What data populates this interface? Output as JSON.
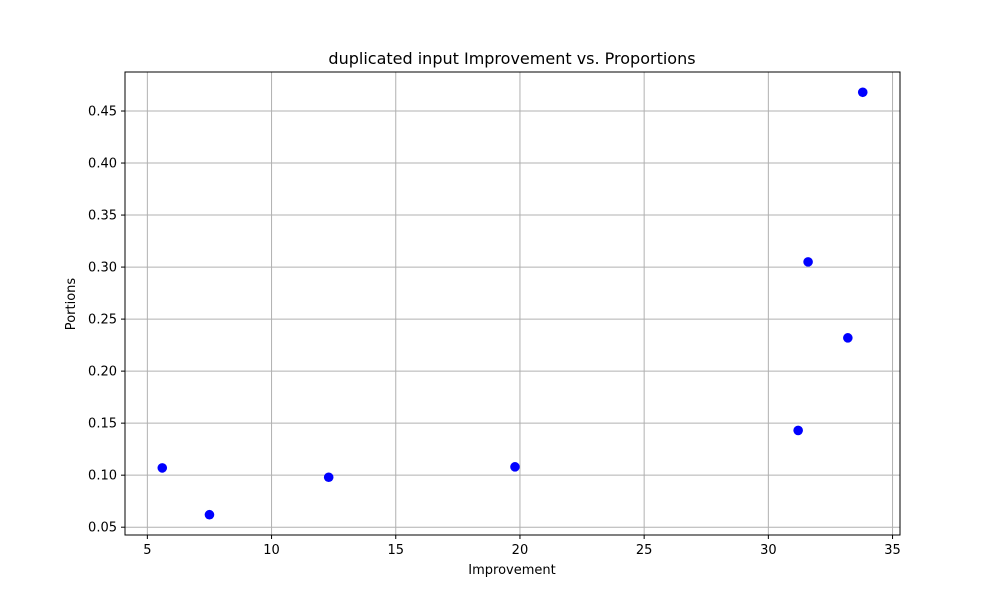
{
  "chart_data": {
    "type": "scatter",
    "title": "duplicated input Improvement vs. Proportions",
    "xlabel": "Improvement",
    "ylabel": "Portions",
    "xlim": [
      4.1,
      35.3
    ],
    "ylim": [
      0.0425,
      0.4875
    ],
    "xticks": [
      5,
      10,
      15,
      20,
      25,
      30,
      35
    ],
    "yticks": [
      0.05,
      0.1,
      0.15,
      0.2,
      0.25,
      0.3,
      0.35,
      0.4,
      0.45
    ],
    "xtick_labels": [
      "5",
      "10",
      "15",
      "20",
      "25",
      "30",
      "35"
    ],
    "ytick_labels": [
      "0.05",
      "0.10",
      "0.15",
      "0.20",
      "0.25",
      "0.30",
      "0.35",
      "0.40",
      "0.45"
    ],
    "grid": true,
    "legend": false,
    "marker_color": "#0000ff",
    "grid_color": "#b0b0b0",
    "x": [
      5.6,
      7.5,
      12.3,
      19.8,
      31.2,
      31.6,
      33.2,
      33.8
    ],
    "y": [
      0.107,
      0.062,
      0.098,
      0.108,
      0.143,
      0.305,
      0.232,
      0.468
    ]
  }
}
